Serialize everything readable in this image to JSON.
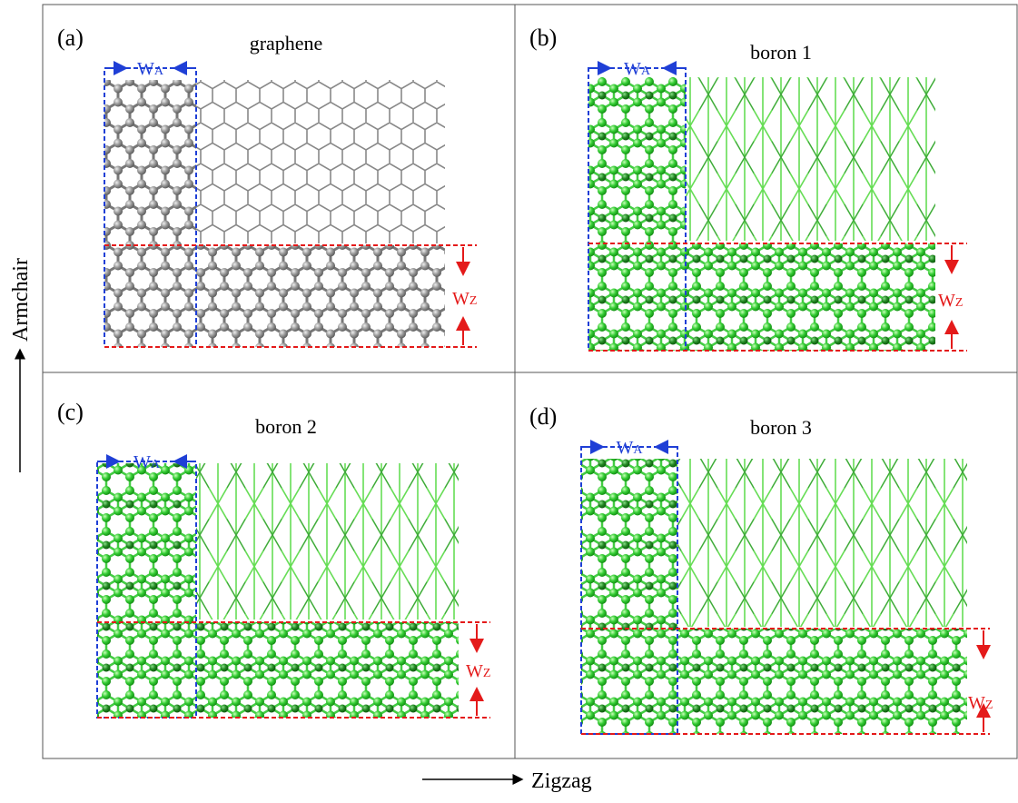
{
  "panels": [
    {
      "label": "(a)",
      "title": "graphene",
      "wa": {
        "main": "W",
        "sub": "A"
      },
      "wz": {
        "main": "W",
        "sub": "Z"
      }
    },
    {
      "label": "(b)",
      "title": "boron 1",
      "wa": {
        "main": "W",
        "sub": "A"
      },
      "wz": {
        "main": "W",
        "sub": "Z"
      }
    },
    {
      "label": "(c)",
      "title": "boron 2",
      "wa": {
        "main": "W",
        "sub": "A"
      },
      "wz": {
        "main": "W",
        "sub": "Z"
      }
    },
    {
      "label": "(d)",
      "title": "boron 3",
      "wa": {
        "main": "W",
        "sub": "A"
      },
      "wz": {
        "main": "W",
        "sub": "Z"
      }
    }
  ],
  "axes": {
    "vertical": "Armchair",
    "horizontal": "Zigzag"
  }
}
